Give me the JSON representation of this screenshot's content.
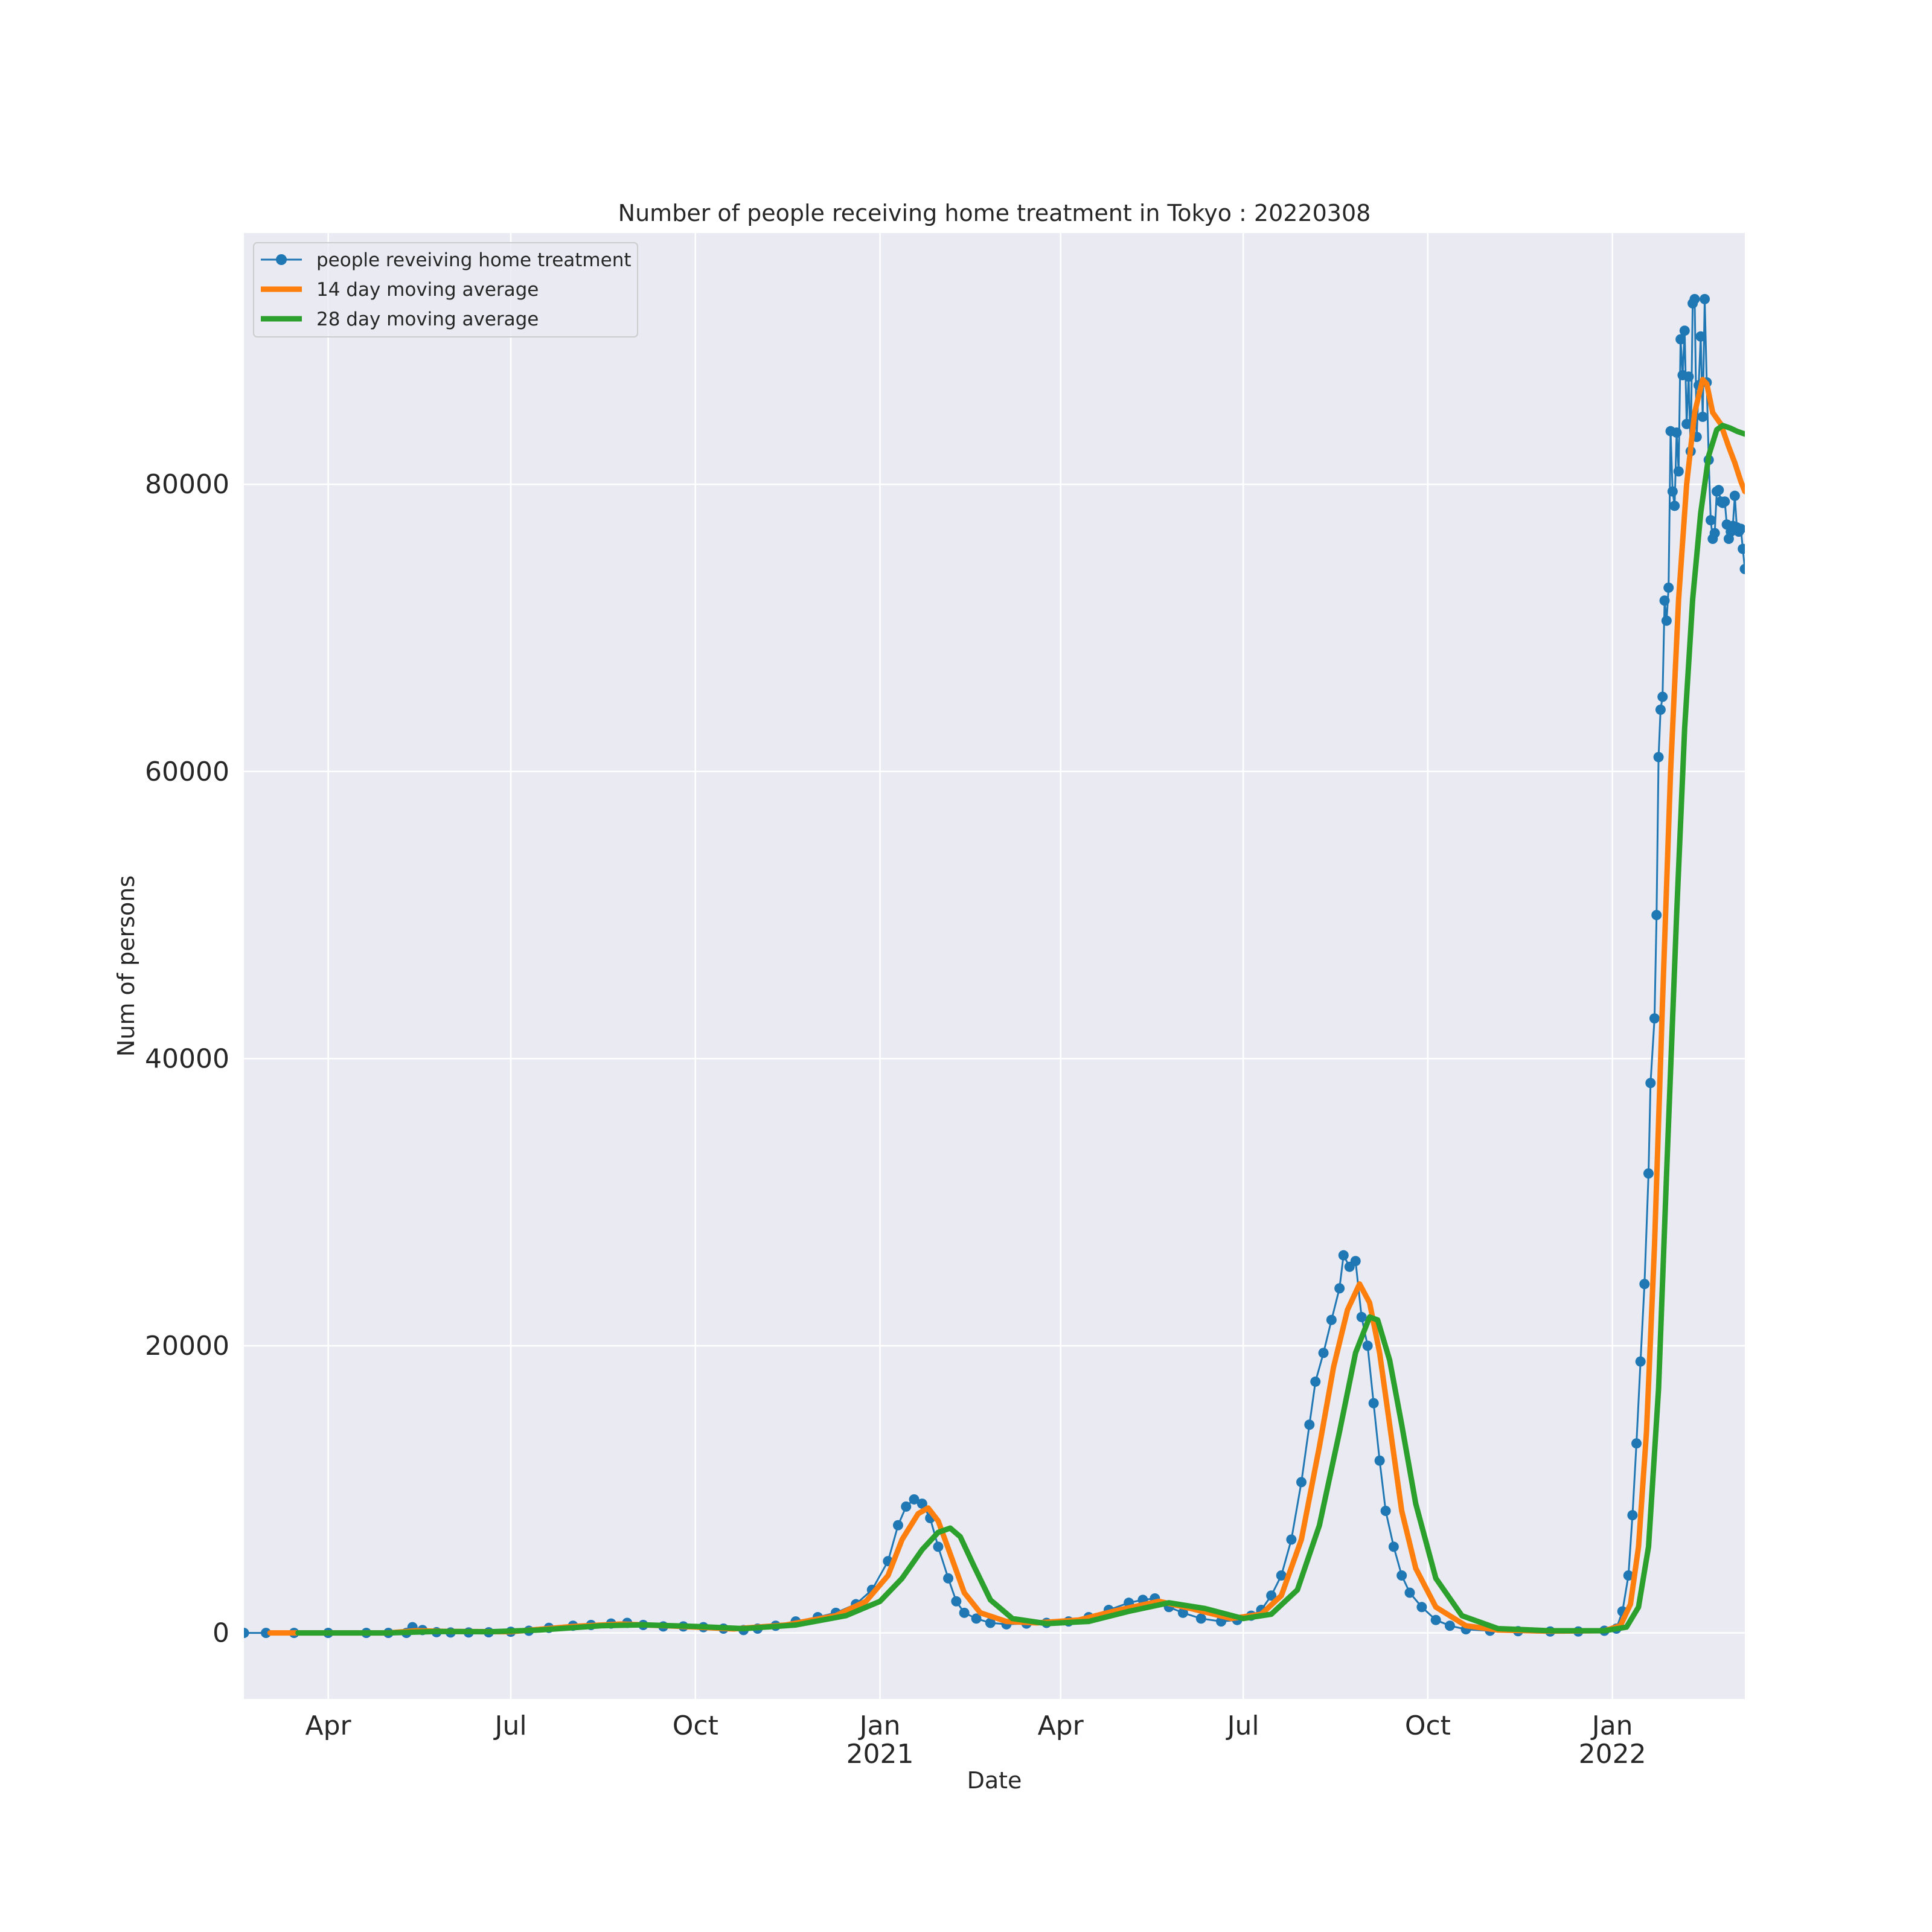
{
  "chart_data": {
    "type": "line",
    "title": "Number of people receiving home treatment in Tokyo : 20220308",
    "xlabel": "Date",
    "ylabel": "Num of persons",
    "xlim": [
      "2020-02-19",
      "2022-03-08"
    ],
    "ylim": [
      -4600,
      97500
    ],
    "grid": true,
    "legend_position": "upper-left",
    "x_ticks": [
      {
        "date": "2020-04-01",
        "label": "Apr",
        "sublabel": ""
      },
      {
        "date": "2020-07-01",
        "label": "Jul",
        "sublabel": ""
      },
      {
        "date": "2020-10-01",
        "label": "Oct",
        "sublabel": ""
      },
      {
        "date": "2021-01-01",
        "label": "Jan",
        "sublabel": "2021"
      },
      {
        "date": "2021-04-01",
        "label": "Apr",
        "sublabel": ""
      },
      {
        "date": "2021-07-01",
        "label": "Jul",
        "sublabel": ""
      },
      {
        "date": "2021-10-01",
        "label": "Oct",
        "sublabel": ""
      },
      {
        "date": "2022-01-01",
        "label": "Jan",
        "sublabel": "2022"
      }
    ],
    "y_ticks": [
      0,
      20000,
      40000,
      60000,
      80000
    ],
    "series": [
      {
        "name": "people reveiving home treatment",
        "color": "#1f77b4",
        "style": "line-with-markers",
        "points": [
          [
            "2020-02-19",
            0
          ],
          [
            "2020-03-01",
            0
          ],
          [
            "2020-03-15",
            0
          ],
          [
            "2020-04-01",
            0
          ],
          [
            "2020-04-20",
            0
          ],
          [
            "2020-05-01",
            0
          ],
          [
            "2020-05-10",
            0
          ],
          [
            "2020-05-13",
            400
          ],
          [
            "2020-05-18",
            200
          ],
          [
            "2020-05-25",
            50
          ],
          [
            "2020-06-01",
            30
          ],
          [
            "2020-06-10",
            30
          ],
          [
            "2020-06-20",
            40
          ],
          [
            "2020-07-01",
            80
          ],
          [
            "2020-07-10",
            150
          ],
          [
            "2020-07-20",
            350
          ],
          [
            "2020-08-01",
            500
          ],
          [
            "2020-08-10",
            550
          ],
          [
            "2020-08-20",
            650
          ],
          [
            "2020-08-28",
            700
          ],
          [
            "2020-09-05",
            550
          ],
          [
            "2020-09-15",
            450
          ],
          [
            "2020-09-25",
            450
          ],
          [
            "2020-10-05",
            400
          ],
          [
            "2020-10-15",
            300
          ],
          [
            "2020-10-25",
            200
          ],
          [
            "2020-11-01",
            300
          ],
          [
            "2020-11-10",
            500
          ],
          [
            "2020-11-20",
            800
          ],
          [
            "2020-12-01",
            1100
          ],
          [
            "2020-12-10",
            1400
          ],
          [
            "2020-12-20",
            2000
          ],
          [
            "2020-12-28",
            3000
          ],
          [
            "2021-01-05",
            5000
          ],
          [
            "2021-01-10",
            7500
          ],
          [
            "2021-01-14",
            8800
          ],
          [
            "2021-01-18",
            9300
          ],
          [
            "2021-01-22",
            9000
          ],
          [
            "2021-01-26",
            8000
          ],
          [
            "2021-01-30",
            6000
          ],
          [
            "2021-02-04",
            3800
          ],
          [
            "2021-02-08",
            2200
          ],
          [
            "2021-02-12",
            1400
          ],
          [
            "2021-02-18",
            1000
          ],
          [
            "2021-02-25",
            700
          ],
          [
            "2021-03-05",
            600
          ],
          [
            "2021-03-15",
            650
          ],
          [
            "2021-03-25",
            700
          ],
          [
            "2021-04-05",
            800
          ],
          [
            "2021-04-15",
            1100
          ],
          [
            "2021-04-25",
            1600
          ],
          [
            "2021-05-05",
            2100
          ],
          [
            "2021-05-12",
            2300
          ],
          [
            "2021-05-18",
            2400
          ],
          [
            "2021-05-25",
            1800
          ],
          [
            "2021-06-01",
            1400
          ],
          [
            "2021-06-10",
            1000
          ],
          [
            "2021-06-20",
            800
          ],
          [
            "2021-06-28",
            900
          ],
          [
            "2021-07-05",
            1200
          ],
          [
            "2021-07-10",
            1600
          ],
          [
            "2021-07-15",
            2600
          ],
          [
            "2021-07-20",
            4000
          ],
          [
            "2021-07-25",
            6500
          ],
          [
            "2021-07-30",
            10500
          ],
          [
            "2021-08-03",
            14500
          ],
          [
            "2021-08-06",
            17500
          ],
          [
            "2021-08-10",
            19500
          ],
          [
            "2021-08-14",
            21800
          ],
          [
            "2021-08-18",
            24000
          ],
          [
            "2021-08-20",
            26300
          ],
          [
            "2021-08-23",
            25500
          ],
          [
            "2021-08-26",
            25900
          ],
          [
            "2021-08-29",
            22000
          ],
          [
            "2021-09-01",
            20000
          ],
          [
            "2021-09-04",
            16000
          ],
          [
            "2021-09-07",
            12000
          ],
          [
            "2021-09-10",
            8500
          ],
          [
            "2021-09-14",
            6000
          ],
          [
            "2021-09-18",
            4000
          ],
          [
            "2021-09-22",
            2800
          ],
          [
            "2021-09-28",
            1800
          ],
          [
            "2021-10-05",
            900
          ],
          [
            "2021-10-12",
            500
          ],
          [
            "2021-10-20",
            250
          ],
          [
            "2021-11-01",
            150
          ],
          [
            "2021-11-15",
            120
          ],
          [
            "2021-12-01",
            100
          ],
          [
            "2021-12-15",
            100
          ],
          [
            "2021-12-28",
            150
          ],
          [
            "2022-01-03",
            300
          ],
          [
            "2022-01-06",
            1500
          ],
          [
            "2022-01-09",
            4000
          ],
          [
            "2022-01-11",
            8200
          ],
          [
            "2022-01-13",
            13200
          ],
          [
            "2022-01-15",
            18900
          ],
          [
            "2022-01-17",
            24300
          ],
          [
            "2022-01-19",
            32000
          ],
          [
            "2022-01-20",
            38300
          ],
          [
            "2022-01-22",
            42800
          ],
          [
            "2022-01-23",
            50000
          ],
          [
            "2022-01-24",
            61000
          ],
          [
            "2022-01-25",
            64300
          ],
          [
            "2022-01-26",
            65200
          ],
          [
            "2022-01-27",
            71900
          ],
          [
            "2022-01-28",
            70500
          ],
          [
            "2022-01-29",
            72800
          ],
          [
            "2022-01-30",
            83700
          ],
          [
            "2022-01-31",
            79500
          ],
          [
            "2022-02-01",
            78500
          ],
          [
            "2022-02-02",
            83600
          ],
          [
            "2022-02-03",
            80900
          ],
          [
            "2022-02-04",
            90100
          ],
          [
            "2022-02-05",
            87600
          ],
          [
            "2022-02-06",
            90700
          ],
          [
            "2022-02-07",
            84200
          ],
          [
            "2022-02-08",
            87500
          ],
          [
            "2022-02-09",
            82300
          ],
          [
            "2022-02-10",
            92600
          ],
          [
            "2022-02-11",
            92900
          ],
          [
            "2022-02-12",
            83300
          ],
          [
            "2022-02-13",
            86900
          ],
          [
            "2022-02-14",
            90300
          ],
          [
            "2022-02-15",
            84700
          ],
          [
            "2022-02-16",
            92900
          ],
          [
            "2022-02-17",
            87100
          ],
          [
            "2022-02-18",
            81700
          ],
          [
            "2022-02-19",
            77500
          ],
          [
            "2022-02-20",
            76200
          ],
          [
            "2022-02-21",
            76600
          ],
          [
            "2022-02-22",
            79500
          ],
          [
            "2022-02-23",
            79600
          ],
          [
            "2022-02-24",
            78800
          ],
          [
            "2022-02-25",
            78700
          ],
          [
            "2022-02-26",
            78800
          ],
          [
            "2022-02-27",
            77200
          ],
          [
            "2022-02-28",
            76200
          ],
          [
            "2022-03-01",
            76700
          ],
          [
            "2022-03-02",
            77100
          ],
          [
            "2022-03-03",
            79200
          ],
          [
            "2022-03-04",
            77000
          ],
          [
            "2022-03-05",
            76700
          ],
          [
            "2022-03-06",
            76900
          ],
          [
            "2022-03-07",
            75500
          ],
          [
            "2022-03-08",
            74100
          ]
        ]
      },
      {
        "name": "14 day moving average",
        "color": "#ff7f0e",
        "style": "line",
        "points": [
          [
            "2020-03-03",
            0
          ],
          [
            "2020-04-01",
            0
          ],
          [
            "2020-05-01",
            0
          ],
          [
            "2020-05-15",
            150
          ],
          [
            "2020-06-01",
            100
          ],
          [
            "2020-07-01",
            80
          ],
          [
            "2020-08-01",
            450
          ],
          [
            "2020-08-25",
            620
          ],
          [
            "2020-09-20",
            480
          ],
          [
            "2020-10-20",
            280
          ],
          [
            "2020-11-15",
            550
          ],
          [
            "2020-12-10",
            1200
          ],
          [
            "2020-12-25",
            2200
          ],
          [
            "2021-01-05",
            4000
          ],
          [
            "2021-01-12",
            6500
          ],
          [
            "2021-01-20",
            8300
          ],
          [
            "2021-01-25",
            8700
          ],
          [
            "2021-01-30",
            7800
          ],
          [
            "2021-02-05",
            5500
          ],
          [
            "2021-02-12",
            2800
          ],
          [
            "2021-02-20",
            1400
          ],
          [
            "2021-03-05",
            800
          ],
          [
            "2021-03-20",
            700
          ],
          [
            "2021-04-10",
            900
          ],
          [
            "2021-04-30",
            1600
          ],
          [
            "2021-05-20",
            2200
          ],
          [
            "2021-06-05",
            1700
          ],
          [
            "2021-06-25",
            1000
          ],
          [
            "2021-07-10",
            1300
          ],
          [
            "2021-07-20",
            2600
          ],
          [
            "2021-07-30",
            6500
          ],
          [
            "2021-08-08",
            13000
          ],
          [
            "2021-08-15",
            18500
          ],
          [
            "2021-08-22",
            22500
          ],
          [
            "2021-08-28",
            24300
          ],
          [
            "2021-09-02",
            23000
          ],
          [
            "2021-09-07",
            19500
          ],
          [
            "2021-09-12",
            14500
          ],
          [
            "2021-09-18",
            8500
          ],
          [
            "2021-09-25",
            4500
          ],
          [
            "2021-10-05",
            1800
          ],
          [
            "2021-10-20",
            500
          ],
          [
            "2021-11-05",
            200
          ],
          [
            "2021-12-01",
            120
          ],
          [
            "2021-12-28",
            150
          ],
          [
            "2022-01-05",
            500
          ],
          [
            "2022-01-10",
            2000
          ],
          [
            "2022-01-14",
            6000
          ],
          [
            "2022-01-18",
            14000
          ],
          [
            "2022-01-22",
            27000
          ],
          [
            "2022-01-26",
            44000
          ],
          [
            "2022-01-30",
            60000
          ],
          [
            "2022-02-03",
            72000
          ],
          [
            "2022-02-07",
            80000
          ],
          [
            "2022-02-11",
            85000
          ],
          [
            "2022-02-15",
            87300
          ],
          [
            "2022-02-17",
            87000
          ],
          [
            "2022-02-20",
            85000
          ],
          [
            "2022-02-24",
            84200
          ],
          [
            "2022-02-28",
            82600
          ],
          [
            "2022-03-03",
            81500
          ],
          [
            "2022-03-06",
            80200
          ],
          [
            "2022-03-08",
            79500
          ]
        ]
      },
      {
        "name": "28 day moving average",
        "color": "#2ca02c",
        "style": "line",
        "points": [
          [
            "2020-03-17",
            0
          ],
          [
            "2020-04-01",
            0
          ],
          [
            "2020-05-01",
            0
          ],
          [
            "2020-05-25",
            100
          ],
          [
            "2020-06-20",
            80
          ],
          [
            "2020-07-15",
            200
          ],
          [
            "2020-08-15",
            500
          ],
          [
            "2020-09-05",
            560
          ],
          [
            "2020-10-01",
            450
          ],
          [
            "2020-10-25",
            300
          ],
          [
            "2020-11-20",
            550
          ],
          [
            "2020-12-15",
            1200
          ],
          [
            "2021-01-01",
            2200
          ],
          [
            "2021-01-12",
            3800
          ],
          [
            "2021-01-22",
            5800
          ],
          [
            "2021-01-30",
            7000
          ],
          [
            "2021-02-05",
            7300
          ],
          [
            "2021-02-10",
            6700
          ],
          [
            "2021-02-17",
            4600
          ],
          [
            "2021-02-25",
            2300
          ],
          [
            "2021-03-08",
            1000
          ],
          [
            "2021-03-25",
            650
          ],
          [
            "2021-04-15",
            800
          ],
          [
            "2021-05-05",
            1500
          ],
          [
            "2021-05-25",
            2100
          ],
          [
            "2021-06-12",
            1700
          ],
          [
            "2021-07-01",
            1000
          ],
          [
            "2021-07-15",
            1300
          ],
          [
            "2021-07-28",
            3000
          ],
          [
            "2021-08-08",
            7500
          ],
          [
            "2021-08-18",
            14000
          ],
          [
            "2021-08-26",
            19500
          ],
          [
            "2021-09-02",
            22000
          ],
          [
            "2021-09-06",
            21800
          ],
          [
            "2021-09-12",
            19000
          ],
          [
            "2021-09-18",
            14500
          ],
          [
            "2021-09-25",
            9000
          ],
          [
            "2021-10-05",
            3800
          ],
          [
            "2021-10-18",
            1200
          ],
          [
            "2021-11-05",
            300
          ],
          [
            "2021-12-01",
            150
          ],
          [
            "2021-12-28",
            150
          ],
          [
            "2022-01-08",
            400
          ],
          [
            "2022-01-14",
            1800
          ],
          [
            "2022-01-19",
            6000
          ],
          [
            "2022-01-24",
            17000
          ],
          [
            "2022-01-28",
            32000
          ],
          [
            "2022-02-02",
            50000
          ],
          [
            "2022-02-06",
            63000
          ],
          [
            "2022-02-10",
            72000
          ],
          [
            "2022-02-14",
            78000
          ],
          [
            "2022-02-18",
            82000
          ],
          [
            "2022-02-22",
            83800
          ],
          [
            "2022-02-25",
            84100
          ],
          [
            "2022-03-01",
            83900
          ],
          [
            "2022-03-04",
            83700
          ],
          [
            "2022-03-08",
            83500
          ]
        ]
      }
    ]
  }
}
